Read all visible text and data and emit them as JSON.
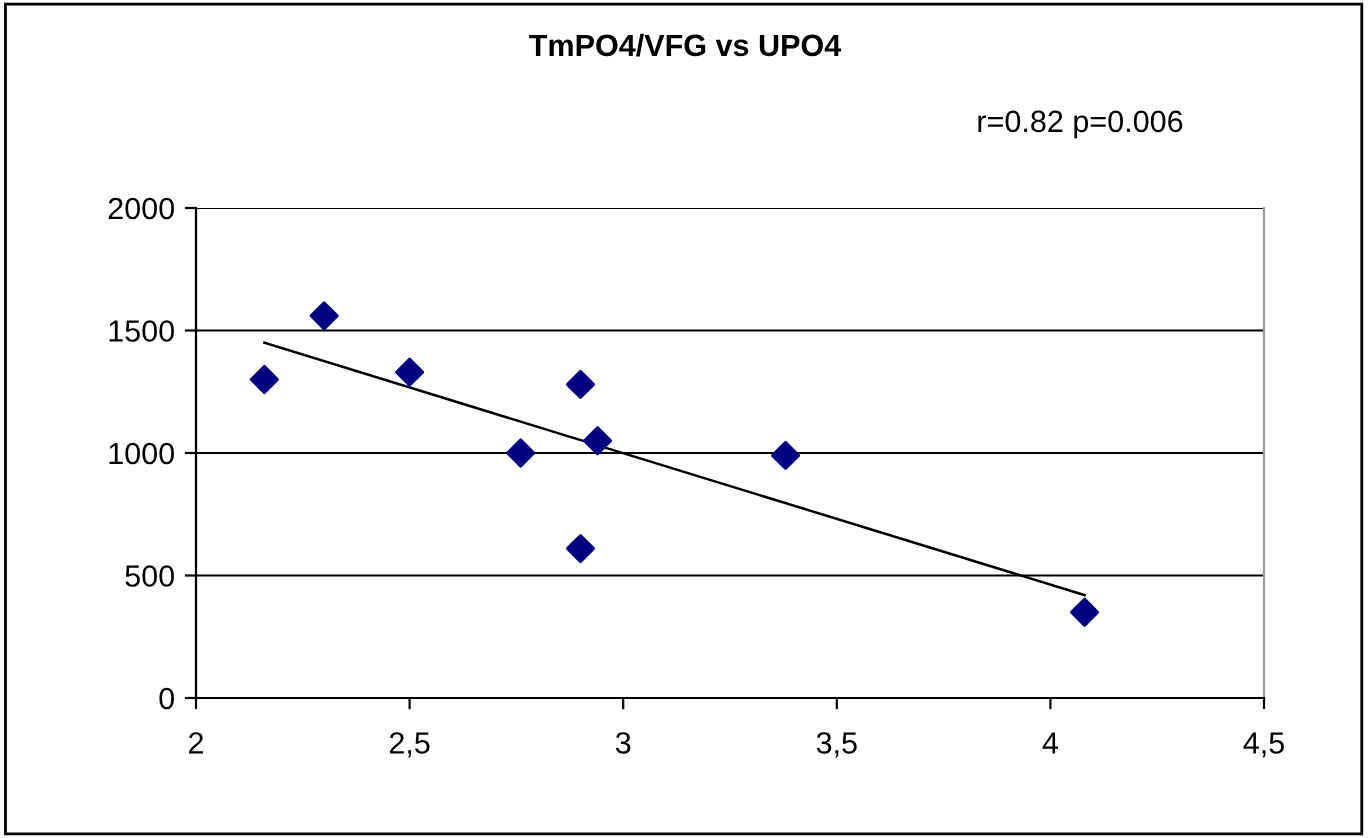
{
  "chart_data": {
    "type": "scatter",
    "title": "TmPO4/VFG vs UPO4",
    "annotations": [
      "r=0.82 p=0.006"
    ],
    "series": [
      {
        "color": "#000080",
        "marker": "diamond",
        "x": [
          2.16,
          2.3,
          2.5,
          2.76,
          2.9,
          2.9,
          2.94,
          3.38,
          4.08
        ],
        "values": [
          1300,
          1560,
          1330,
          1000,
          1280,
          610,
          1050,
          990,
          350
        ]
      },
      {
        "type": "line",
        "color": "#000000",
        "marker": "none",
        "x": [
          2.16,
          4.08
        ],
        "values": [
          1450,
          420
        ]
      }
    ],
    "xlim": [
      2,
      4.5
    ],
    "xticks": [
      2,
      {
        "value": 2.5,
        "label": "2,5"
      },
      3,
      {
        "value": 3.5,
        "label": "3,5"
      },
      4,
      {
        "value": 4.5,
        "label": "4,5"
      }
    ],
    "ylim": [
      0,
      2000
    ],
    "yticks": [
      0,
      500,
      1000,
      1500,
      2000
    ],
    "grid": "y",
    "legend": false
  }
}
